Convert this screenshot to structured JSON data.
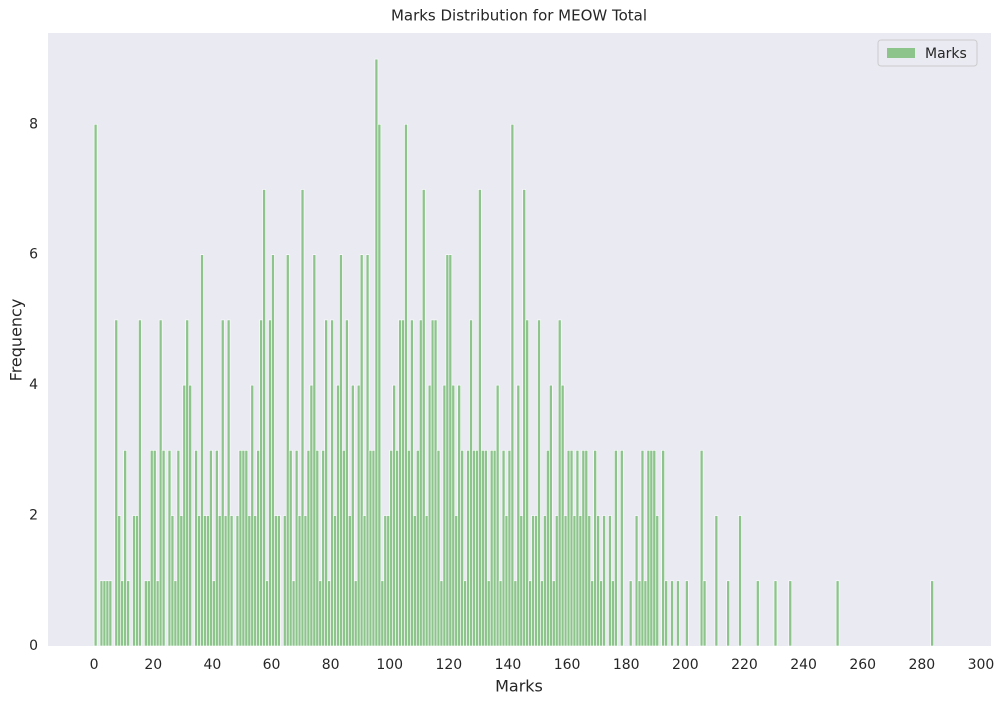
{
  "chart_data": {
    "type": "histogram",
    "title": "Marks Distribution for MEOW Total",
    "x_label": "Marks",
    "y_label": "Frequency",
    "bins": [
      0,
      1,
      2,
      3,
      4,
      5,
      6,
      7,
      8,
      9,
      10,
      11,
      12,
      13,
      14,
      15,
      16,
      17,
      18,
      19,
      20,
      21,
      22,
      23,
      24,
      25,
      26,
      27,
      28,
      29,
      30,
      31,
      32,
      33,
      34,
      35,
      36,
      37,
      38,
      39,
      40,
      41,
      42,
      43,
      44,
      45,
      46,
      47,
      48,
      49,
      50,
      51,
      52,
      53,
      54,
      55,
      56,
      57,
      58,
      59,
      60,
      61,
      62,
      63,
      64,
      65,
      66,
      67,
      68,
      69,
      70,
      71,
      72,
      73,
      74,
      75,
      76,
      77,
      78,
      79,
      80,
      81,
      82,
      83,
      84,
      85,
      86,
      87,
      88,
      89,
      90,
      91,
      92,
      93,
      94,
      95,
      96,
      97,
      98,
      99,
      100,
      101,
      102,
      103,
      104,
      105,
      106,
      107,
      108,
      109,
      110,
      111,
      112,
      113,
      114,
      115,
      116,
      117,
      118,
      119,
      120,
      121,
      122,
      123,
      124,
      125,
      126,
      127,
      128,
      129,
      130,
      131,
      132,
      133,
      134,
      135,
      136,
      137,
      138,
      139,
      140,
      141,
      142,
      143,
      144,
      145,
      146,
      147,
      148,
      149,
      150,
      151,
      152,
      153,
      154,
      155,
      156,
      157,
      158,
      159,
      160,
      161,
      162,
      163,
      164,
      165,
      166,
      167,
      168,
      169,
      170,
      171,
      172,
      173,
      174,
      175,
      176,
      177,
      178,
      179,
      180,
      181,
      182,
      183,
      184,
      185,
      186,
      187,
      188,
      189,
      190,
      191,
      192,
      193,
      194,
      195,
      196,
      197,
      198,
      199,
      200,
      201,
      202,
      203,
      204,
      205,
      206,
      207,
      208,
      209,
      210,
      211,
      212,
      213,
      214,
      215,
      216,
      217,
      218,
      219,
      220,
      221,
      222,
      223,
      224,
      225,
      226,
      227,
      228,
      229,
      230,
      231,
      232,
      233,
      234,
      235,
      236,
      237,
      238,
      239,
      240,
      241,
      242,
      243,
      244,
      245,
      246,
      247,
      248,
      249,
      250,
      251,
      252,
      253,
      254,
      255,
      256,
      257,
      258,
      259,
      260,
      261,
      262,
      263,
      264,
      265,
      266,
      267,
      268,
      269,
      270,
      271,
      272,
      273,
      274,
      275,
      276,
      277,
      278,
      279,
      280,
      281,
      282,
      283,
      284
    ],
    "series": [
      {
        "name": "Marks",
        "color": "#8cc48c",
        "values": [
          8,
          0,
          1,
          1,
          1,
          1,
          0,
          5,
          2,
          1,
          3,
          1,
          0,
          2,
          2,
          5,
          0,
          1,
          1,
          3,
          3,
          1,
          5,
          3,
          0,
          3,
          2,
          1,
          3,
          2,
          4,
          5,
          4,
          0,
          3,
          2,
          6,
          2,
          2,
          3,
          1,
          3,
          2,
          5,
          2,
          5,
          2,
          0,
          2,
          3,
          3,
          3,
          2,
          4,
          2,
          3,
          5,
          7,
          1,
          5,
          6,
          2,
          2,
          0,
          2,
          6,
          3,
          1,
          3,
          2,
          7,
          2,
          3,
          4,
          6,
          3,
          1,
          3,
          5,
          1,
          5,
          2,
          4,
          6,
          3,
          5,
          2,
          4,
          1,
          4,
          6,
          2,
          6,
          3,
          3,
          9,
          8,
          1,
          2,
          2,
          3,
          4,
          3,
          5,
          5,
          8,
          3,
          5,
          2,
          3,
          5,
          7,
          2,
          4,
          5,
          5,
          3,
          1,
          4,
          6,
          6,
          4,
          2,
          4,
          3,
          1,
          3,
          5,
          3,
          3,
          7,
          3,
          3,
          1,
          3,
          3,
          4,
          1,
          3,
          2,
          3,
          8,
          1,
          4,
          2,
          7,
          5,
          1,
          2,
          2,
          5,
          1,
          2,
          3,
          4,
          1,
          2,
          5,
          4,
          2,
          3,
          3,
          2,
          3,
          2,
          3,
          3,
          2,
          1,
          3,
          2,
          1,
          2,
          0,
          2,
          1,
          3,
          0,
          3,
          0,
          0,
          1,
          0,
          2,
          1,
          3,
          1,
          3,
          3,
          3,
          2,
          0,
          3,
          1,
          0,
          1,
          0,
          1,
          0,
          0,
          1,
          0,
          0,
          0,
          0,
          3,
          1,
          0,
          0,
          0,
          2,
          0,
          0,
          0,
          1,
          0,
          0,
          0,
          2,
          0,
          0,
          0,
          0,
          0,
          1,
          0,
          0,
          0,
          0,
          0,
          1,
          0,
          0,
          0,
          0,
          1,
          0,
          0,
          0,
          0,
          0,
          0,
          0,
          0,
          0,
          0,
          0,
          0,
          0,
          0,
          0,
          1,
          0,
          0,
          0,
          0,
          0,
          0,
          0,
          0,
          0,
          0,
          0,
          0,
          0,
          0,
          0,
          0,
          0,
          0,
          0,
          0,
          0,
          0,
          0,
          0,
          0,
          0,
          0,
          0,
          0,
          0,
          0,
          1
        ]
      }
    ],
    "xlim": [
      -15.6,
      303.4
    ],
    "ylim": [
      0,
      9.4
    ],
    "xticks": [
      0,
      20,
      40,
      60,
      80,
      100,
      120,
      140,
      160,
      180,
      200,
      220,
      240,
      260,
      280,
      300
    ],
    "yticks": [
      0,
      2,
      4,
      6,
      8
    ],
    "grid": false,
    "legend": "upper right"
  }
}
